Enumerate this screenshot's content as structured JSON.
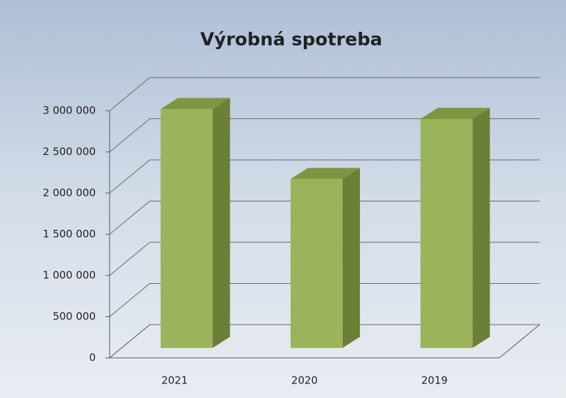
{
  "chart_data": {
    "type": "bar3d",
    "title": "Výrobná spotreba",
    "categories": [
      "2021",
      "2020",
      "2019"
    ],
    "values": [
      2900000,
      2050000,
      2780000
    ],
    "color": "#9bb35a",
    "ylim": [
      0,
      3000000
    ],
    "yticks": [
      0,
      {
        "value": 500000,
        "label": "500 000"
      },
      {
        "value": 1000000,
        "label": "1 000 000"
      },
      {
        "value": 1500000,
        "label": "1 500 000"
      },
      {
        "value": 2000000,
        "label": "2 000 000"
      },
      {
        "value": 2500000,
        "label": "2 500 000"
      },
      {
        "value": 3000000,
        "label": "3 000 000"
      }
    ],
    "grid": true
  }
}
